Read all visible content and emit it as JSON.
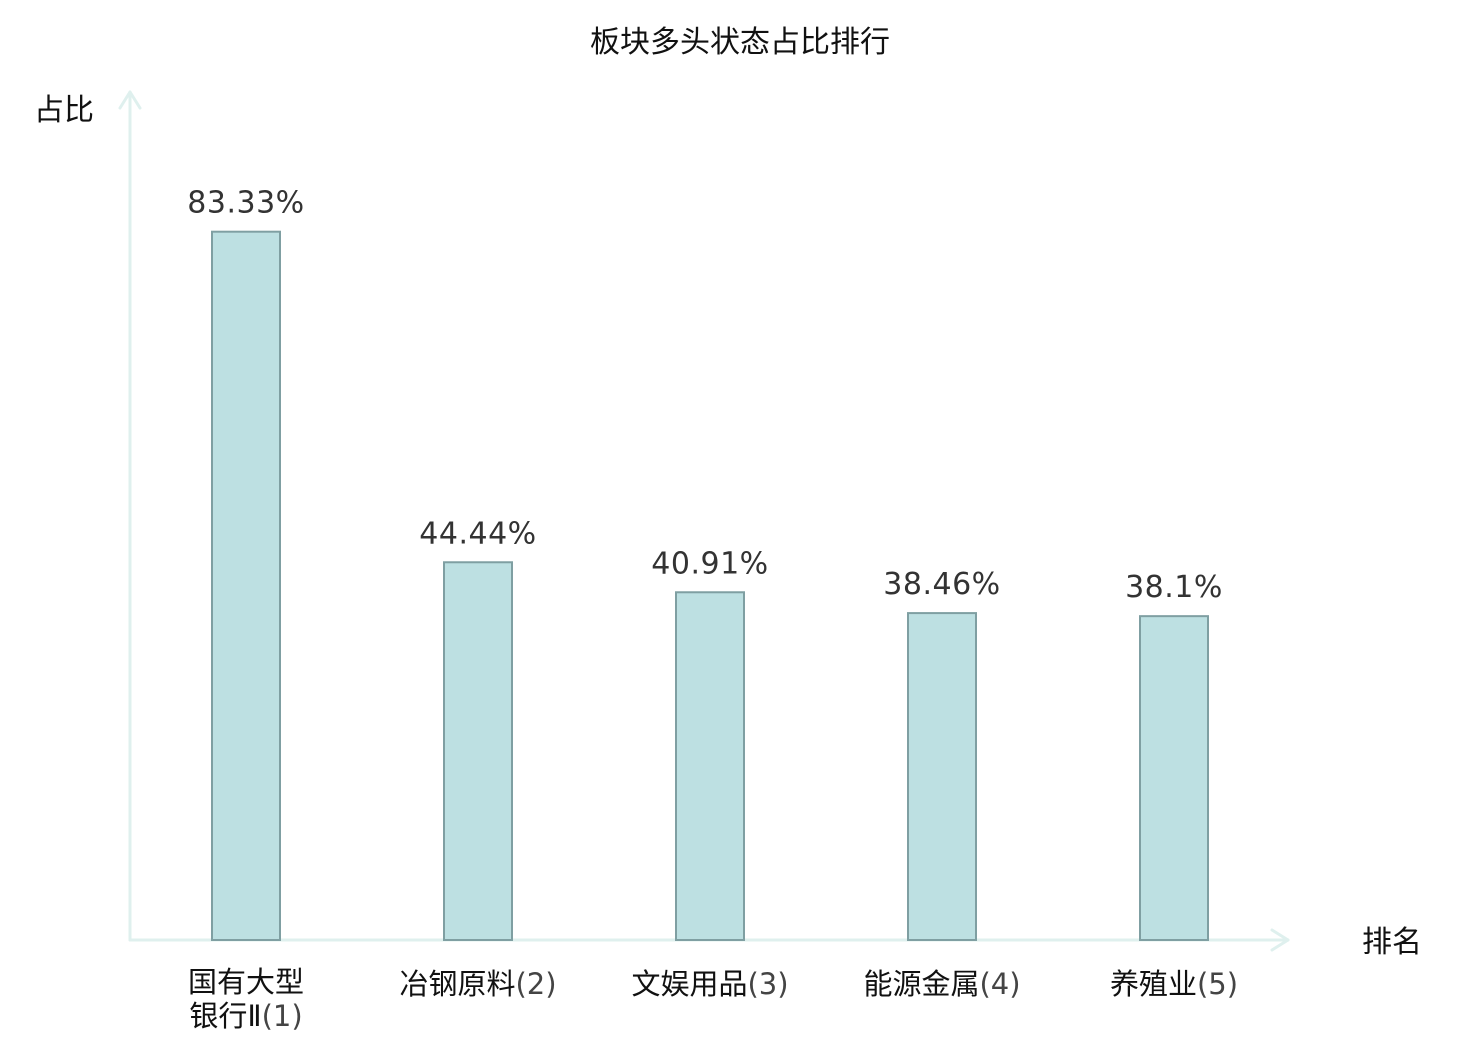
{
  "chart_data": {
    "type": "bar",
    "title": "板块多头状态占比排行",
    "ylabel": "占比",
    "xlabel": "排名",
    "ylim": [
      0,
      100
    ],
    "grid": false,
    "legend": "none",
    "categories": [
      {
        "name": "国有大型银行Ⅱ",
        "rank": "(1)",
        "highlight": false
      },
      {
        "name": "冶钢原料",
        "rank": "(2)",
        "highlight": false
      },
      {
        "name": "文娱用品",
        "rank": "(3)",
        "highlight": false
      },
      {
        "name": "能源金属",
        "rank": "(4)",
        "highlight": false
      },
      {
        "name": "养殖业",
        "rank": "(5)",
        "highlight": true
      }
    ],
    "values": [
      83.33,
      44.44,
      40.91,
      38.46,
      38.1
    ],
    "value_labels": [
      "83.33%",
      "44.44%",
      "40.91%",
      "38.46%",
      "38.1%"
    ]
  },
  "colors": {
    "bar_fill": "#bde0e2",
    "bar_stroke": "#7f9fa2",
    "axis": "#dff0ee",
    "highlight_text": "#e02020",
    "text": "#111111"
  }
}
